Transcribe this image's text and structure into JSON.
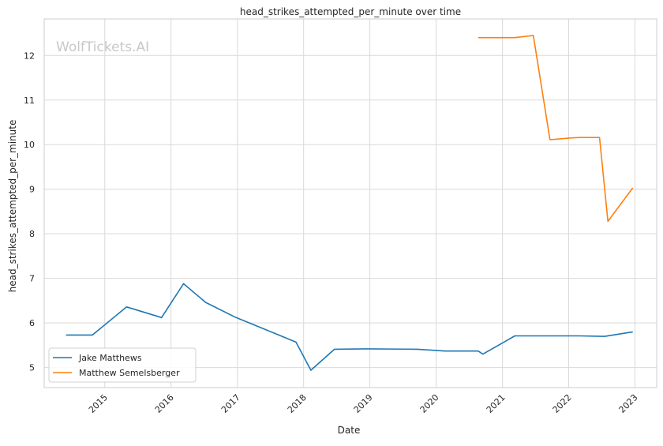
{
  "chart_data": {
    "type": "line",
    "title": "head_strikes_attempted_per_minute over time",
    "xlabel": "Date",
    "ylabel": "head_strikes_attempted_per_minute",
    "watermark": "WolfTickets.AI",
    "xlim": [
      "2014-02-01",
      "2023-05-01"
    ],
    "ylim": [
      4.55,
      12.82
    ],
    "x_ticks": [
      "2015-01-01",
      "2016-01-01",
      "2017-01-01",
      "2018-01-01",
      "2019-01-01",
      "2020-01-01",
      "2021-01-01",
      "2022-01-01",
      "2023-01-01"
    ],
    "x_tick_labels": [
      "2015",
      "2016",
      "2017",
      "2018",
      "2019",
      "2020",
      "2021",
      "2022",
      "2023"
    ],
    "y_ticks": [
      5,
      6,
      7,
      8,
      9,
      10,
      11,
      12
    ],
    "y_tick_labels": [
      "5",
      "6",
      "7",
      "8",
      "9",
      "10",
      "11",
      "12"
    ],
    "grid": true,
    "legend_position": "bottom-left",
    "colors": {
      "Jake Matthews": "#1f77b4",
      "Matthew Semelsberger": "#ff7f0e"
    },
    "series": [
      {
        "name": "Jake Matthews",
        "x": [
          "2014-06-01",
          "2014-10-25",
          "2015-05-01",
          "2015-11-10",
          "2016-03-10",
          "2016-07-10",
          "2016-12-20",
          "2017-11-20",
          "2018-02-10",
          "2018-06-20",
          "2018-12-10",
          "2019-09-20",
          "2020-02-20",
          "2020-08-20",
          "2020-09-15",
          "2021-03-10",
          "2021-07-20",
          "2022-03-01",
          "2022-07-20",
          "2022-12-20"
        ],
        "values": [
          5.73,
          5.73,
          6.36,
          6.12,
          6.88,
          6.46,
          6.13,
          5.57,
          4.94,
          5.41,
          5.42,
          5.41,
          5.37,
          5.37,
          5.3,
          5.71,
          5.71,
          5.71,
          5.7,
          5.8
        ]
      },
      {
        "name": "Matthew Semelsberger",
        "x": [
          "2020-08-20",
          "2021-03-10",
          "2021-06-20",
          "2021-09-20",
          "2022-01-10",
          "2022-03-01",
          "2022-06-20",
          "2022-08-05",
          "2022-12-20"
        ],
        "values": [
          12.4,
          12.4,
          12.45,
          10.11,
          10.15,
          10.16,
          10.16,
          8.28,
          9.03
        ]
      }
    ]
  }
}
